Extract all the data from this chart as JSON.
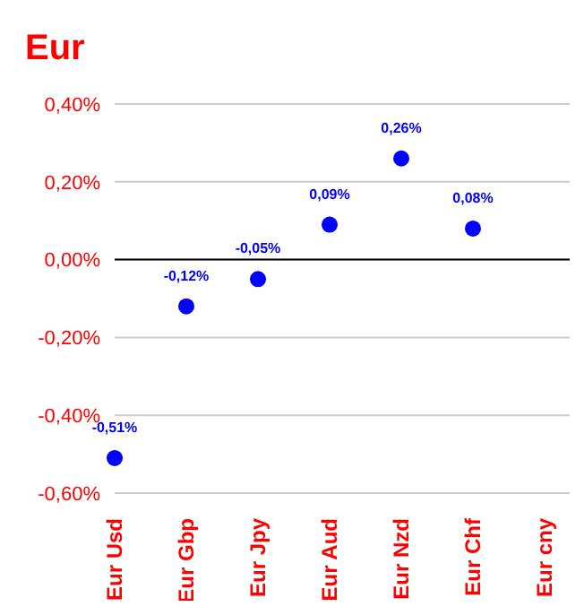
{
  "chart_data": {
    "type": "scatter",
    "title": "Eur",
    "categories": [
      "Eur Usd",
      "Eur Gbp",
      "Eur Jpy",
      "Eur Aud",
      "Eur Nzd",
      "Eur Chf",
      "Eur cny"
    ],
    "values": [
      -0.51,
      -0.12,
      -0.05,
      0.09,
      0.26,
      0.08,
      null
    ],
    "value_labels": [
      "-0,51%",
      "-0,12%",
      "-0,05%",
      "0,09%",
      "0,26%",
      "0,08%",
      null
    ],
    "color": "#0000ff",
    "marker": "circle",
    "ylim": [
      -0.6,
      0.4
    ],
    "yticks": [
      {
        "value": -0.6,
        "label": "-0,60%"
      },
      {
        "value": -0.4,
        "label": "-0,40%"
      },
      {
        "value": -0.2,
        "label": "-0,20%"
      },
      {
        "value": 0,
        "label": "0,00%"
      },
      {
        "value": 0.2,
        "label": "0,20%"
      },
      {
        "value": 0.4,
        "label": "0,40%"
      }
    ],
    "grid": "y",
    "ref_lines": [
      {
        "axis": "y",
        "value": 0,
        "color": "#000000"
      }
    ]
  }
}
